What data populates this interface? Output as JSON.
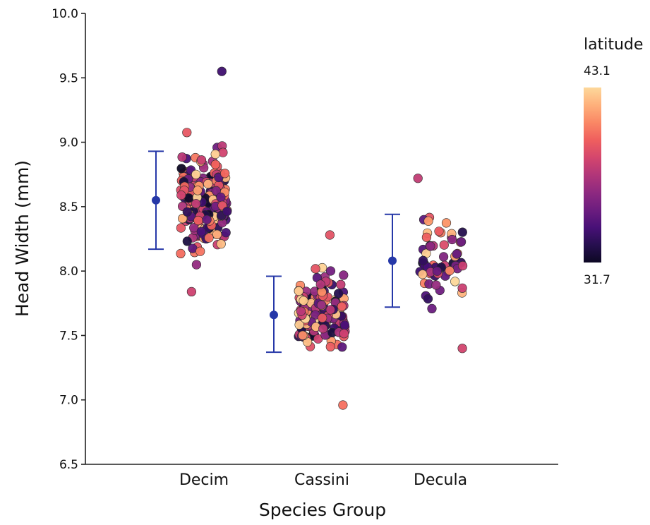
{
  "chart_data": {
    "type": "scatter",
    "subtype": "jittered strip plot with mean and error bars",
    "xlabel": "Species Group",
    "ylabel": "Head Width (mm)",
    "ylim": [
      6.5,
      10.0
    ],
    "yticks": [
      "6.5",
      "7.0",
      "7.5",
      "8.0",
      "8.5",
      "9.0",
      "9.5",
      "10.0"
    ],
    "categories": [
      "Decim",
      "Cassini",
      "Decula"
    ],
    "summary": [
      {
        "category": "Decim",
        "mean": 8.55,
        "lower": 8.17,
        "upper": 8.93
      },
      {
        "category": "Cassini",
        "mean": 7.66,
        "lower": 7.37,
        "upper": 7.96
      },
      {
        "category": "Decula",
        "mean": 8.08,
        "lower": 7.72,
        "upper": 8.44
      }
    ],
    "point_distribution": [
      {
        "category": "Decim",
        "n": 200,
        "y_min": 7.84,
        "y_max": 9.55,
        "center": 8.55,
        "spread": 0.38
      },
      {
        "category": "Cassini",
        "n": 170,
        "y_min": 6.96,
        "y_max": 8.28,
        "center": 7.66,
        "spread": 0.28
      },
      {
        "category": "Decula",
        "n": 62,
        "y_min": 7.4,
        "y_max": 8.72,
        "center": 8.08,
        "spread": 0.32
      }
    ],
    "legend": {
      "title": "latitude",
      "max_label": "43.1",
      "min_label": "31.7",
      "min": 31.7,
      "max": 43.1,
      "placement": "right"
    },
    "colormap": [
      "#000004",
      "#180f3d",
      "#440f76",
      "#721f81",
      "#9e2f7f",
      "#cd4071",
      "#f1605d",
      "#fd9668",
      "#feca8d",
      "#fcfdbf"
    ],
    "summary_color": "#2638a8",
    "grid": false
  }
}
